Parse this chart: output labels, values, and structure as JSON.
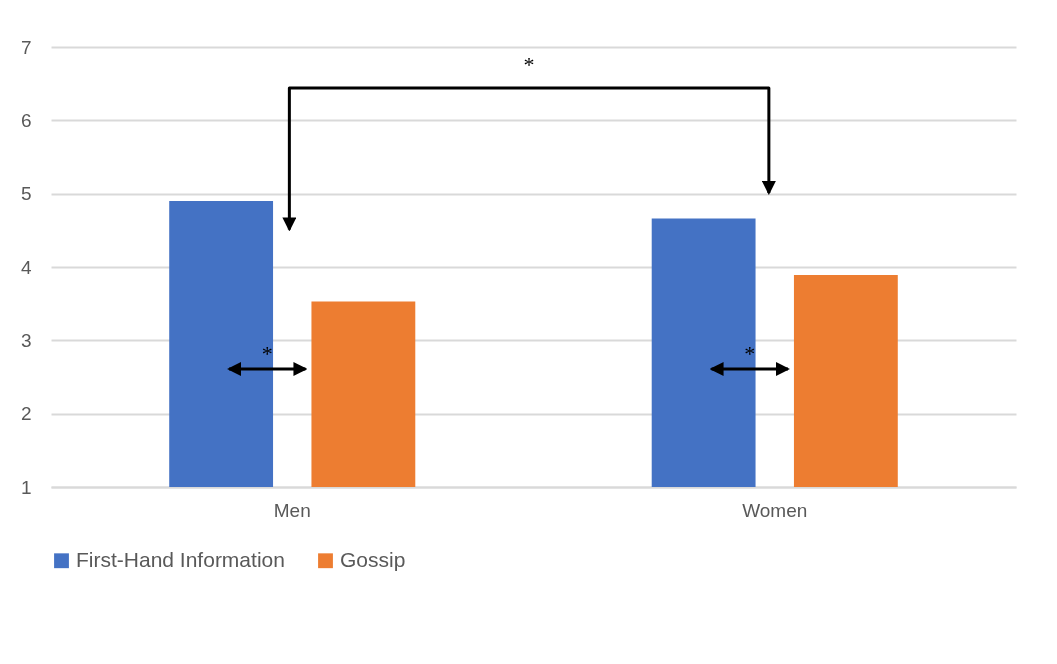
{
  "chart_data": {
    "type": "bar",
    "categories": [
      "Men",
      "Women"
    ],
    "series": [
      {
        "name": "First-Hand Information",
        "color": "#4472c4",
        "values": [
          4.9,
          4.66
        ]
      },
      {
        "name": "Gossip",
        "color": "#ed7d31",
        "values": [
          3.53,
          3.89
        ]
      }
    ],
    "ylim": [
      1,
      7
    ],
    "yticks": [
      1,
      2,
      3,
      4,
      5,
      6,
      7
    ],
    "grid": "y",
    "legend": "bottom",
    "annotations": [
      "*",
      "*",
      "*"
    ]
  }
}
